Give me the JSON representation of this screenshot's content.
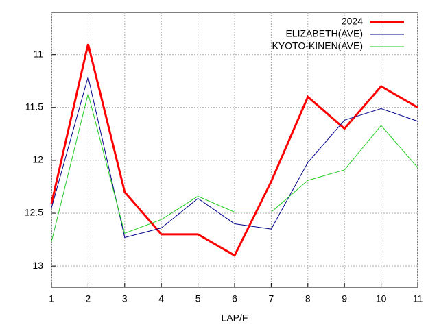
{
  "chart_data": {
    "type": "line",
    "x": [
      1,
      2,
      3,
      4,
      5,
      6,
      7,
      8,
      9,
      10,
      11
    ],
    "series": [
      {
        "name": "2024",
        "color": "#ff0000",
        "width": 3,
        "values": [
          12.41,
          10.9,
          12.3,
          12.7,
          12.7,
          12.9,
          12.2,
          11.4,
          11.7,
          11.3,
          11.5
        ]
      },
      {
        "name": "ELIZABETH(AVE)",
        "color": "#00008b",
        "width": 1,
        "values": [
          12.45,
          11.21,
          12.73,
          12.64,
          12.36,
          12.6,
          12.65,
          12.02,
          11.62,
          11.51,
          11.63
        ]
      },
      {
        "name": "KYOTO-KINEN(AVE)",
        "color": "#22cc22",
        "width": 1,
        "values": [
          12.77,
          11.37,
          12.69,
          12.56,
          12.34,
          12.49,
          12.49,
          12.19,
          12.09,
          11.67,
          12.07
        ]
      }
    ],
    "xlabel": "LAP/F",
    "xlim": [
      1,
      11
    ],
    "xticks": [
      1,
      2,
      3,
      4,
      5,
      6,
      7,
      8,
      9,
      10,
      11
    ],
    "ylim": [
      10.6,
      13.2
    ],
    "yticks": [
      11,
      11.5,
      12,
      12.5,
      13
    ],
    "y_reversed": true,
    "grid": true,
    "legend": "top-right"
  }
}
